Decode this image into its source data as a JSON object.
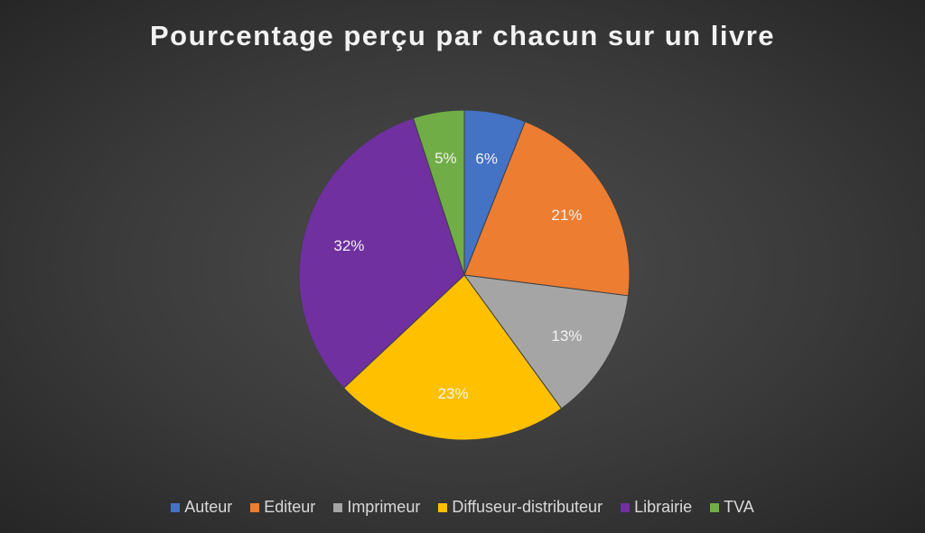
{
  "chart_data": {
    "type": "pie",
    "title": "Pourcentage perçu par chacun sur un livre",
    "categories": [
      "Auteur",
      "Editeur",
      "Imprimeur",
      "Diffuseur-distributeur",
      "Librairie",
      "TVA"
    ],
    "values": [
      6,
      21,
      13,
      23,
      32,
      5
    ],
    "labels": [
      "6%",
      "21%",
      "13%",
      "23%",
      "32%",
      "5%"
    ],
    "colors": [
      "#4472c4",
      "#ed7d31",
      "#a5a5a5",
      "#ffc000",
      "#7030a0",
      "#70ad47"
    ],
    "legend_position": "bottom"
  }
}
